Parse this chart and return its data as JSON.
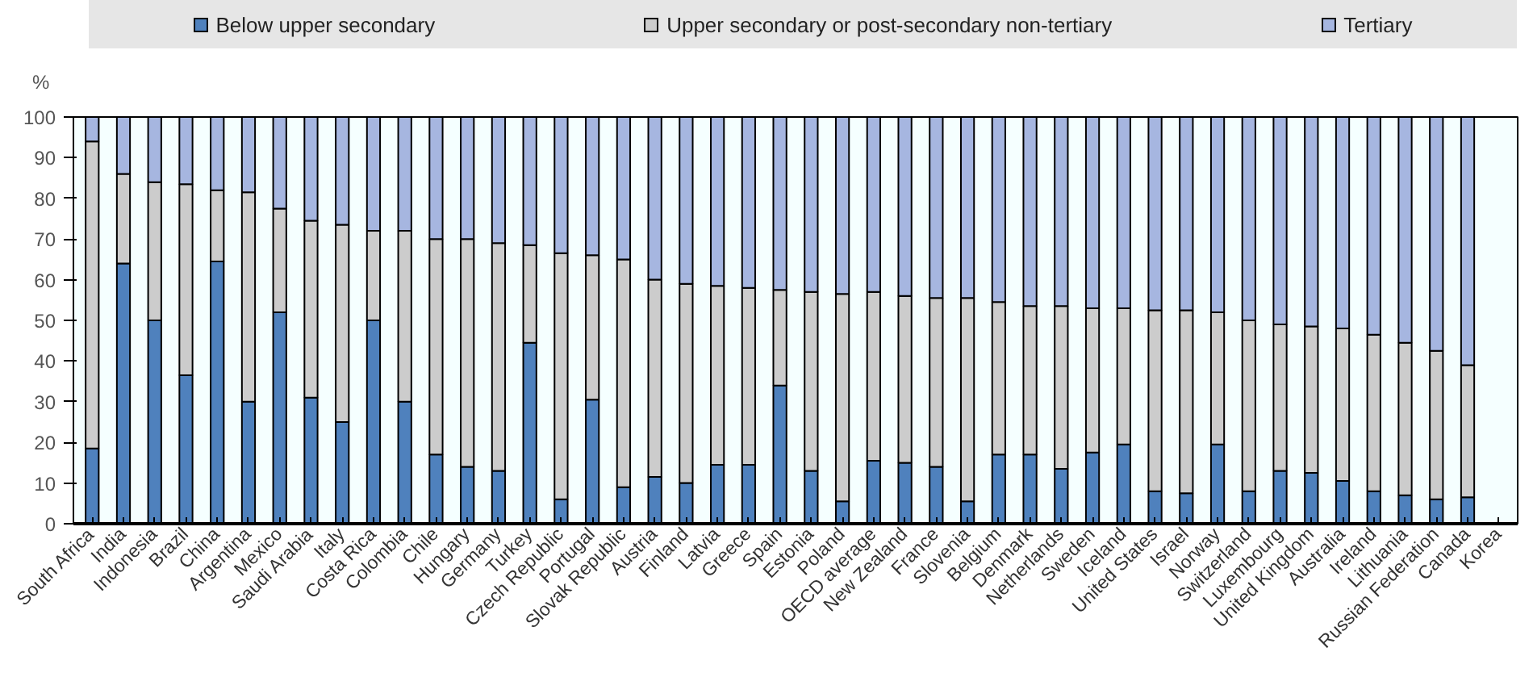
{
  "chart_data": {
    "type": "bar",
    "stacked": true,
    "ylabel": "%",
    "categories": [
      "South Africa",
      "India",
      "Indonesia",
      "Brazil",
      "China",
      "Argentina",
      "Mexico",
      "Saudi Arabia",
      "Italy",
      "Costa Rica",
      "Colombia",
      "Chile",
      "Hungary",
      "Germany",
      "Turkey",
      "Czech Republic",
      "Portugal",
      "Slovak Republic",
      "Austria",
      "Finland",
      "Latvia",
      "Greece",
      "Spain",
      "Estonia",
      "Poland",
      "OECD average",
      "New Zealand",
      "France",
      "Slovenia",
      "Belgium",
      "Denmark",
      "Netherlands",
      "Sweden",
      "Iceland",
      "United States",
      "Israel",
      "Norway",
      "Switzerland",
      "Luxembourg",
      "United Kingdom",
      "Australia",
      "Ireland",
      "Lithuania",
      "Russian Federation",
      "Canada",
      "Korea"
    ],
    "series": [
      {
        "name": "Below upper secondary",
        "color": "#4f81bd",
        "values": [
          18.5,
          64,
          50,
          36.5,
          64.5,
          30,
          52,
          31,
          25,
          50,
          30,
          17,
          14,
          13,
          44.5,
          6,
          30.5,
          9,
          11.5,
          10,
          14.5,
          14.5,
          34,
          13,
          5.5,
          15.5,
          15,
          14,
          5.5,
          17,
          17,
          13.5,
          17.5,
          19.5,
          8,
          7.5,
          19.5,
          8,
          13,
          12.5,
          10.5,
          8,
          7,
          6,
          6.5,
          null
        ]
      },
      {
        "name": "Upper secondary or post-secondary non-tertiary",
        "color": "#cccccc",
        "values": [
          75.5,
          22,
          34,
          47,
          17.5,
          51.5,
          25.5,
          43.5,
          48.5,
          22,
          42,
          53,
          56,
          56,
          24,
          60.5,
          35.5,
          56,
          48.5,
          49,
          44,
          43.5,
          23.5,
          44,
          51,
          41.5,
          41,
          41.5,
          50,
          37.5,
          36.5,
          40,
          35.5,
          33.5,
          44.5,
          45,
          32.5,
          42,
          36,
          36,
          37.5,
          38.5,
          37.5,
          36.5,
          32.5,
          null
        ]
      },
      {
        "name": "Tertiary",
        "color": "#a6b6e0",
        "values": [
          6,
          14,
          16,
          16.5,
          18,
          18.5,
          22.5,
          25.5,
          26.5,
          28,
          28,
          30,
          30,
          31,
          31.5,
          33.5,
          34,
          35,
          40,
          41,
          41.5,
          42,
          42.5,
          43,
          43.5,
          43,
          44,
          44.5,
          44.5,
          45.5,
          46.5,
          46.5,
          47,
          47,
          47.5,
          47.5,
          48,
          50,
          51,
          51.5,
          52,
          53.5,
          55.5,
          57.5,
          61,
          null
        ]
      }
    ],
    "ylim": [
      0,
      100
    ],
    "yticks": [
      0,
      10,
      20,
      30,
      40,
      50,
      60,
      70,
      80,
      90,
      100
    ],
    "grid": false,
    "legend": "top"
  }
}
